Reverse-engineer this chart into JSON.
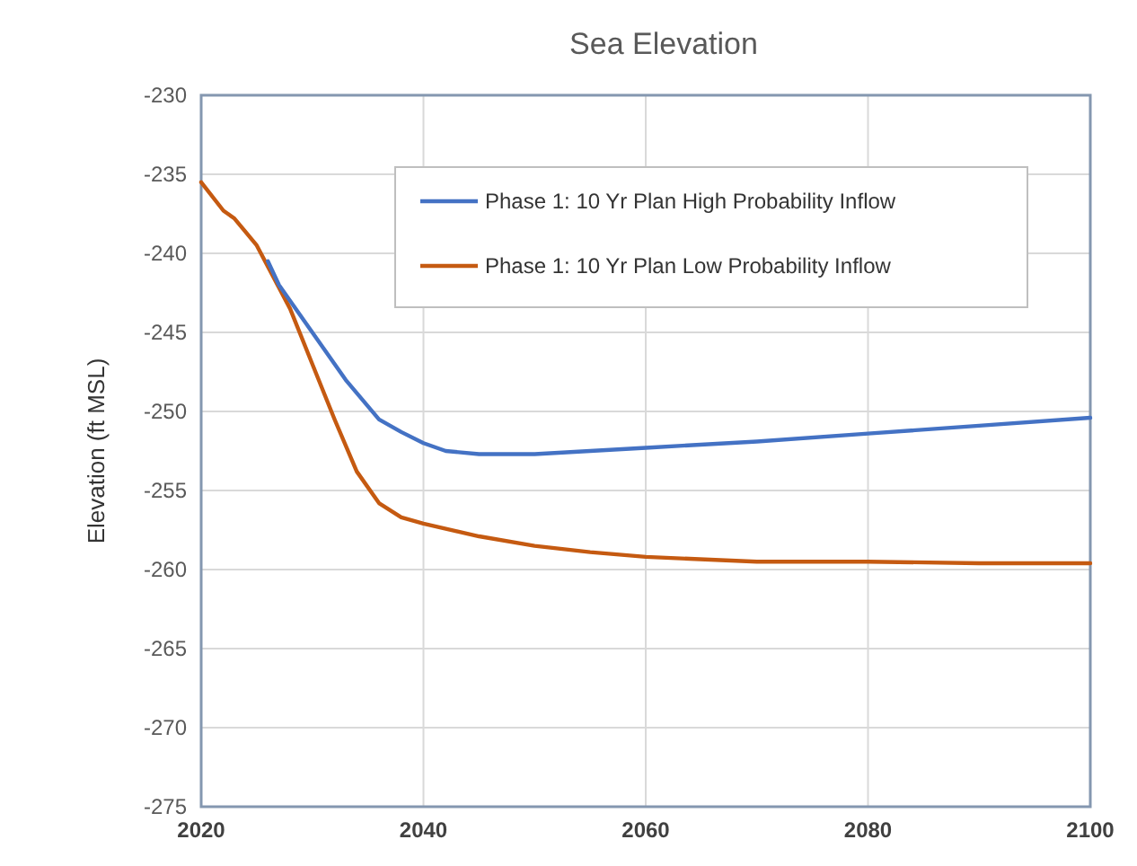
{
  "chart_data": {
    "type": "line",
    "title": "Sea Elevation",
    "ylabel": "Elevation (ft MSL)",
    "xlim": [
      2020,
      2100
    ],
    "xticks": [
      2020,
      2040,
      2060,
      2080,
      2100
    ],
    "ylim": [
      -275,
      -230
    ],
    "yticks": [
      -275,
      -270,
      -265,
      -260,
      -255,
      -250,
      -245,
      -240,
      -235,
      -230
    ],
    "grid": true,
    "legend": "top right",
    "marker": "none",
    "line_style": "solid",
    "series": [
      {
        "name": "Phase 1: 10 Yr Plan High Probability Inflow",
        "color": "#4472c4",
        "x": [
          2026,
          2027,
          2030,
          2033,
          2036,
          2038,
          2040,
          2042,
          2045,
          2050,
          2055,
          2060,
          2070,
          2080,
          2090,
          2100
        ],
        "values": [
          -240.5,
          -242,
          -245,
          -248,
          -250.5,
          -251.3,
          -252,
          -252.5,
          -252.7,
          -252.7,
          -252.5,
          -252.3,
          -251.9,
          -251.4,
          -250.9,
          -250.4
        ]
      },
      {
        "name": "Phase 1: 10 Yr Plan Low Probability Inflow",
        "color": "#c55a11",
        "x": [
          2020,
          2022,
          2023,
          2025,
          2028,
          2030,
          2032,
          2034,
          2036,
          2038,
          2040,
          2045,
          2050,
          2055,
          2060,
          2070,
          2080,
          2090,
          2100
        ],
        "values": [
          -235.5,
          -237.3,
          -237.8,
          -239.5,
          -243.5,
          -247,
          -250.5,
          -253.8,
          -255.8,
          -256.7,
          -257.1,
          -257.9,
          -258.5,
          -258.9,
          -259.2,
          -259.5,
          -259.5,
          -259.6,
          -259.6
        ]
      }
    ]
  }
}
